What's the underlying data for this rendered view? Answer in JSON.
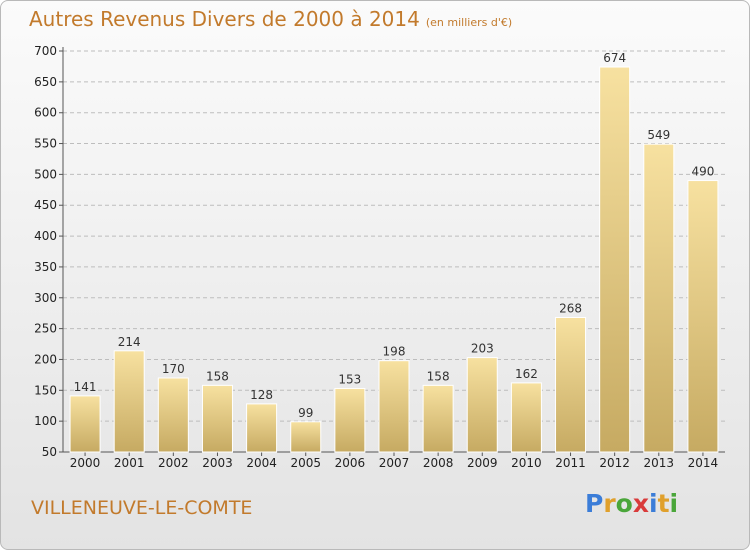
{
  "header": {
    "title": "Autres Revenus Divers de 2000 à 2014",
    "subtitle": "(en milliers d'€)"
  },
  "footer": {
    "city": "VILLENEUVE-LE-COMTE",
    "brand": "Proxiti"
  },
  "colors": {
    "title": "#c27a2c",
    "bar_light": "#f7e1a0",
    "bar_dark": "#c6aa62",
    "grid": "#bdbdbd",
    "brand_letters": [
      "#3b7dd8",
      "#e0a02c",
      "#4aa63a",
      "#d93b3b",
      "#3b7dd8",
      "#e0a02c",
      "#4aa63a"
    ]
  },
  "chart_data": {
    "type": "bar",
    "title": "Autres Revenus Divers de 2000 à 2014",
    "subtitle": "(en milliers d'€)",
    "categories": [
      "2000",
      "2001",
      "2002",
      "2003",
      "2004",
      "2005",
      "2006",
      "2007",
      "2008",
      "2009",
      "2010",
      "2011",
      "2012",
      "2013",
      "2014"
    ],
    "values": [
      141,
      214,
      170,
      158,
      128,
      99,
      153,
      198,
      158,
      203,
      162,
      268,
      674,
      549,
      490
    ],
    "ylim": [
      50,
      700
    ],
    "yticks": [
      50,
      100,
      150,
      200,
      250,
      300,
      350,
      400,
      450,
      500,
      550,
      600,
      650,
      700
    ],
    "grid": true,
    "data_labels": true
  }
}
